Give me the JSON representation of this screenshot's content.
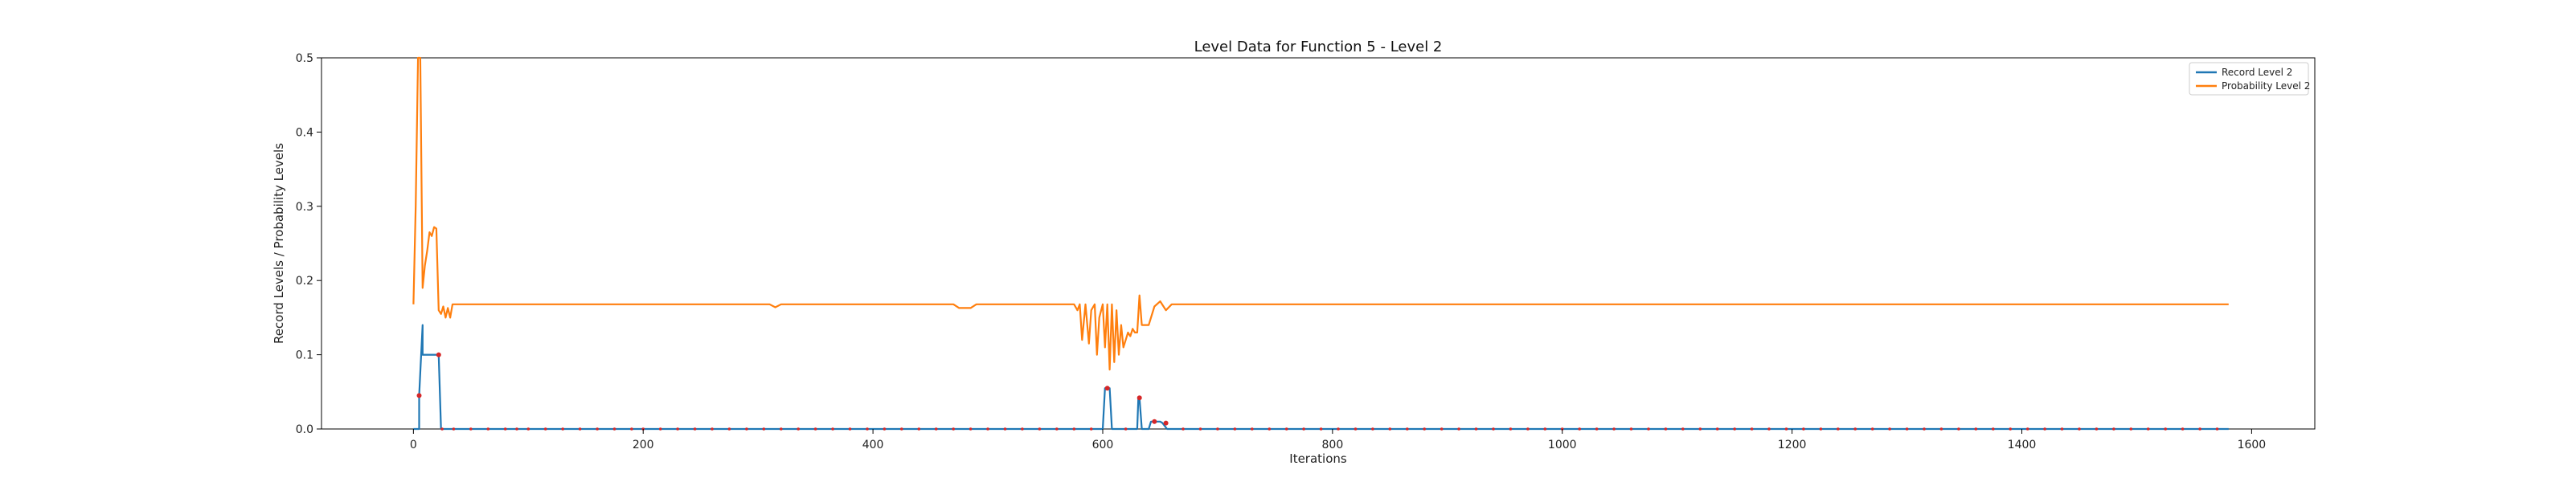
{
  "chart_data": {
    "type": "line",
    "title": "Level Data for Function 5 - Level 2",
    "xlabel": "Iterations",
    "ylabel": "Record Levels / Probability Levels",
    "xlim": [
      -80,
      1655
    ],
    "ylim": [
      0,
      0.5
    ],
    "xticks": [
      0,
      200,
      400,
      600,
      800,
      1000,
      1200,
      1400,
      1600
    ],
    "yticks": [
      0.0,
      0.1,
      0.2,
      0.3,
      0.4,
      0.5
    ],
    "grid": false,
    "legend_position": "top-right",
    "colors": {
      "record": "#1f77b4",
      "probability": "#ff7f0e",
      "markers": "#d62728"
    },
    "series": [
      {
        "name": "Record Level 2",
        "x": [
          0,
          5,
          5,
          8,
          8,
          22,
          22,
          24,
          600,
          602,
          606,
          608,
          630,
          631,
          632,
          634,
          640,
          642,
          650,
          652,
          656,
          1580
        ],
        "y": [
          0,
          0,
          0.045,
          0.14,
          0.1,
          0.1,
          0.1,
          0,
          0,
          0.055,
          0.055,
          0,
          0,
          0.042,
          0.042,
          0,
          0,
          0.01,
          0.01,
          0.008,
          0,
          0
        ]
      },
      {
        "name": "Probability Level 2",
        "x": [
          0,
          2,
          4,
          6,
          8,
          10,
          12,
          14,
          16,
          18,
          20,
          22,
          24,
          26,
          28,
          30,
          32,
          34,
          36,
          40,
          60,
          100,
          200,
          300,
          310,
          315,
          320,
          330,
          400,
          460,
          470,
          475,
          480,
          485,
          490,
          500,
          560,
          575,
          578,
          580,
          582,
          585,
          588,
          590,
          593,
          595,
          597,
          600,
          602,
          604,
          606,
          608,
          610,
          612,
          614,
          616,
          618,
          620,
          622,
          624,
          626,
          628,
          630,
          632,
          634,
          636,
          640,
          645,
          650,
          655,
          660,
          670,
          680,
          700,
          800,
          1000,
          1200,
          1400,
          1580
        ],
        "y": [
          0.168,
          0.3,
          0.5,
          0.5,
          0.19,
          0.22,
          0.24,
          0.265,
          0.26,
          0.272,
          0.27,
          0.16,
          0.155,
          0.165,
          0.15,
          0.163,
          0.15,
          0.168,
          0.168,
          0.168,
          0.168,
          0.168,
          0.168,
          0.168,
          0.168,
          0.164,
          0.168,
          0.168,
          0.168,
          0.168,
          0.168,
          0.163,
          0.163,
          0.163,
          0.168,
          0.168,
          0.168,
          0.168,
          0.16,
          0.168,
          0.12,
          0.168,
          0.115,
          0.16,
          0.168,
          0.1,
          0.15,
          0.168,
          0.11,
          0.168,
          0.08,
          0.168,
          0.09,
          0.16,
          0.1,
          0.14,
          0.11,
          0.12,
          0.13,
          0.125,
          0.135,
          0.13,
          0.13,
          0.18,
          0.14,
          0.14,
          0.14,
          0.165,
          0.172,
          0.16,
          0.168,
          0.168,
          0.168,
          0.168,
          0.168,
          0.168,
          0.168,
          0.168,
          0.168
        ]
      }
    ],
    "markers": {
      "x": [
        5,
        22,
        25,
        35,
        50,
        65,
        80,
        90,
        100,
        115,
        130,
        145,
        160,
        175,
        190,
        200,
        215,
        230,
        245,
        260,
        275,
        290,
        305,
        320,
        335,
        350,
        365,
        380,
        395,
        410,
        425,
        440,
        455,
        470,
        485,
        500,
        515,
        530,
        545,
        560,
        575,
        590,
        604,
        620,
        632,
        645,
        655,
        670,
        685,
        700,
        715,
        730,
        745,
        760,
        775,
        790,
        805,
        820,
        835,
        850,
        865,
        880,
        895,
        910,
        925,
        940,
        955,
        970,
        985,
        1000,
        1015,
        1030,
        1045,
        1060,
        1075,
        1090,
        1105,
        1120,
        1135,
        1150,
        1165,
        1180,
        1195,
        1210,
        1225,
        1240,
        1255,
        1270,
        1285,
        1300,
        1315,
        1330,
        1345,
        1360,
        1375,
        1390,
        1405,
        1420,
        1435,
        1450,
        1465,
        1480,
        1495,
        1510,
        1525,
        1540,
        1555,
        1570
      ],
      "y": [
        0.045,
        0.1,
        0,
        0,
        0,
        0,
        0,
        0,
        0,
        0,
        0,
        0,
        0,
        0,
        0,
        0,
        0,
        0,
        0,
        0,
        0,
        0,
        0,
        0,
        0,
        0,
        0,
        0,
        0,
        0,
        0,
        0,
        0,
        0,
        0,
        0,
        0,
        0,
        0,
        0,
        0,
        0,
        0.055,
        0,
        0.042,
        0.01,
        0.008,
        0,
        0,
        0,
        0,
        0,
        0,
        0,
        0,
        0,
        0,
        0,
        0,
        0,
        0,
        0,
        0,
        0,
        0,
        0,
        0,
        0,
        0,
        0,
        0,
        0,
        0,
        0,
        0,
        0,
        0,
        0,
        0,
        0,
        0,
        0,
        0,
        0,
        0,
        0,
        0,
        0,
        0,
        0,
        0,
        0,
        0,
        0,
        0,
        0,
        0,
        0,
        0,
        0,
        0,
        0,
        0,
        0,
        0,
        0,
        0,
        0
      ]
    }
  }
}
